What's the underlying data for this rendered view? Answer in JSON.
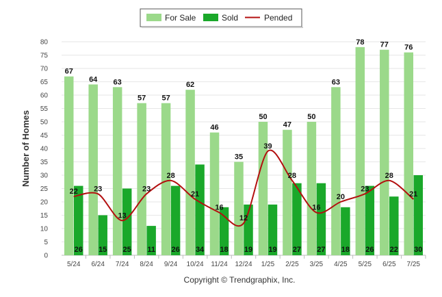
{
  "chart_data": {
    "type": "bar",
    "title": "",
    "xlabel": "",
    "ylabel": "Number of Homes",
    "ylim": [
      0,
      80
    ],
    "yticks": [
      0,
      5,
      10,
      15,
      20,
      25,
      30,
      35,
      40,
      45,
      50,
      55,
      60,
      65,
      70,
      75,
      80
    ],
    "grid": true,
    "legend_position": "top-center",
    "categories": [
      "5/24",
      "6/24",
      "7/24",
      "8/24",
      "9/24",
      "10/24",
      "11/24",
      "12/24",
      "1/25",
      "2/25",
      "3/25",
      "4/25",
      "5/25",
      "6/25",
      "7/25"
    ],
    "series": [
      {
        "name": "For Sale",
        "type": "bar",
        "color": "#9bd98a",
        "values": [
          67,
          64,
          63,
          57,
          57,
          62,
          46,
          35,
          50,
          47,
          50,
          63,
          78,
          77,
          76
        ]
      },
      {
        "name": "Sold",
        "type": "bar",
        "color": "#1aa82a",
        "values": [
          26,
          15,
          25,
          11,
          26,
          34,
          18,
          19,
          19,
          27,
          27,
          18,
          26,
          22,
          30
        ]
      },
      {
        "name": "Pended",
        "type": "line",
        "color": "#b30f0f",
        "values": [
          22,
          23,
          13,
          23,
          28,
          21,
          16,
          12,
          39,
          28,
          16,
          20,
          23,
          28,
          21
        ]
      }
    ],
    "footer": "Copyright © Trendgraphix, Inc."
  }
}
